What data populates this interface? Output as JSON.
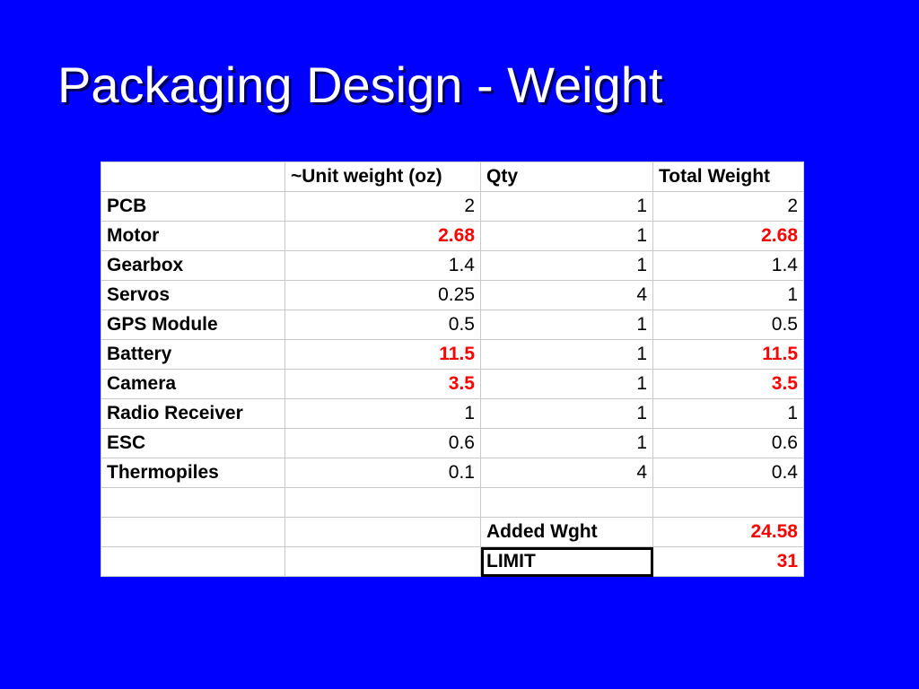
{
  "title": "Packaging Design - Weight",
  "table": {
    "header": [
      "~Unit weight (oz)",
      "Qty",
      "Total Weight"
    ],
    "rows": [
      [
        "PCB",
        2,
        1,
        2
      ],
      [
        "Motor",
        2.68,
        1,
        2.68
      ],
      [
        "Gearbox",
        1.4,
        1,
        1.4
      ],
      [
        "Servos",
        0.25,
        4,
        1
      ],
      [
        "GPS Module",
        0.5,
        1,
        0.5
      ],
      [
        "Battery",
        11.5,
        1,
        11.5
      ],
      [
        "Camera",
        3.5,
        1,
        3.5
      ],
      [
        "Radio Receiver",
        1,
        1,
        1
      ],
      [
        "ESC",
        0.6,
        1,
        0.6
      ],
      [
        "Thermopiles",
        0.1,
        4,
        0.4
      ]
    ],
    "summary": [
      {
        "label": "Added Wght",
        "value": 24.58
      },
      {
        "label": "LIMIT",
        "value": 31
      }
    ]
  }
}
